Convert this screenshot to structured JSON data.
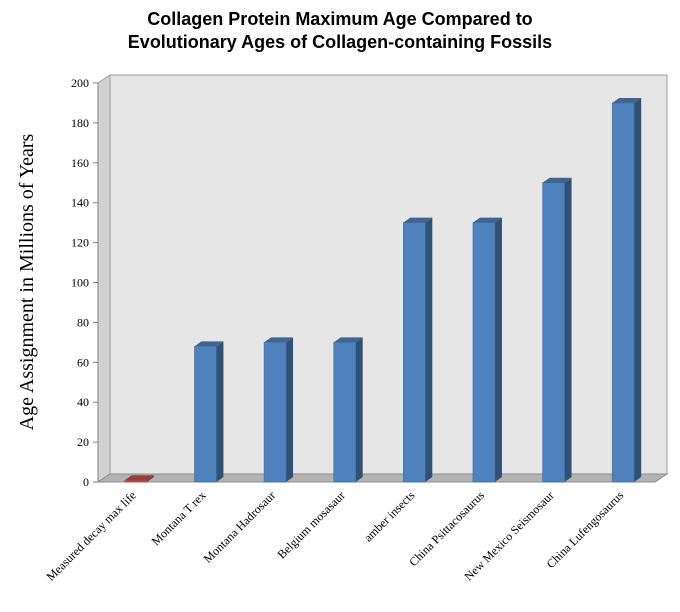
{
  "chart_data": {
    "type": "bar",
    "title_lines": [
      "Collagen Protein Maximum Age Compared to",
      "Evolutionary Ages of Collagen-containing Fossils"
    ],
    "xlabel": "",
    "ylabel": "Age Assignment in Millions of Years",
    "ylim": [
      0,
      200
    ],
    "yticks": [
      "0",
      "20",
      "40",
      "60",
      "80",
      "100",
      "120",
      "140",
      "160",
      "180",
      "200"
    ],
    "categories": [
      "Measured decay max life",
      "Montana T rex",
      "Montana Hadrosaur",
      "Belgium mosasaur",
      "amber insects",
      "China Psittacosaurus",
      "New Mexico Seismosaur",
      "China Lufengosaurus"
    ],
    "values": [
      0.9,
      68,
      70,
      70,
      130,
      130,
      150,
      190
    ],
    "colors": {
      "default_bar": "#4f81bd",
      "highlight_bar": "#c0504d",
      "plot_wall": "#e6e6e6",
      "floor": "#b3b3b3"
    },
    "highlight_index": 0,
    "grid": false
  }
}
